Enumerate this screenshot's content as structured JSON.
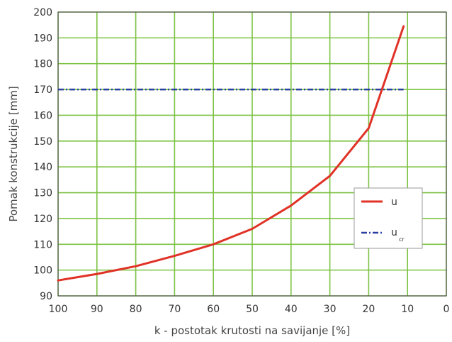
{
  "chart_data": {
    "type": "line",
    "title": "",
    "xlabel": "k - postotak krutosti na savijanje [%]",
    "ylabel": "Pomak konstrukcije [mm]",
    "xlim": [
      100,
      0
    ],
    "ylim": [
      90,
      200
    ],
    "x_reversed": true,
    "grid": true,
    "grid_color": "#7cc242",
    "x_ticks": [
      "100",
      "90",
      "80",
      "70",
      "60",
      "50",
      "40",
      "30",
      "20",
      "10",
      "0"
    ],
    "y_ticks": [
      "90",
      "100",
      "110",
      "120",
      "130",
      "140",
      "150",
      "160",
      "170",
      "180",
      "190",
      "200"
    ],
    "legend_position": "right",
    "series": [
      {
        "name": "u",
        "color": "#e03226",
        "style": "solid",
        "x": [
          100,
          90,
          80,
          70,
          60,
          50,
          40,
          30,
          20,
          11
        ],
        "y": [
          96,
          98.5,
          101.5,
          105.5,
          110,
          116,
          125,
          136.5,
          155,
          194.5
        ]
      },
      {
        "name": "u",
        "subscript": "cr",
        "color": "#2b3f9e",
        "style": "dashdot",
        "x": [
          100,
          11
        ],
        "y": [
          170,
          170
        ]
      }
    ]
  }
}
